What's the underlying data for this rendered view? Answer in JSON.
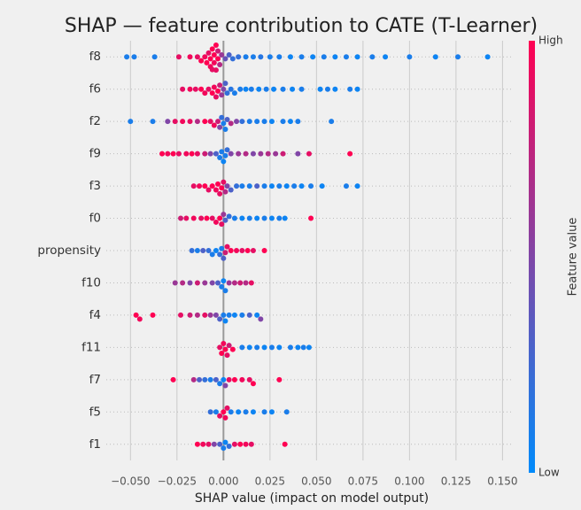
{
  "chart_data": {
    "type": "beeswarm",
    "title": "SHAP — feature contribution to CATE (T-Learner)",
    "x_label": "SHAP value (impact on model output)",
    "xlim": [
      -0.063,
      0.156
    ],
    "xticks": [
      {
        "value": -0.05,
        "label": "−0.050"
      },
      {
        "value": -0.025,
        "label": "−0.025"
      },
      {
        "value": 0,
        "label": "0.000"
      },
      {
        "value": 0.025,
        "label": "0.025"
      },
      {
        "value": 0.05,
        "label": "0.050"
      },
      {
        "value": 0.075,
        "label": "0.075"
      },
      {
        "value": 0.1,
        "label": "0.100"
      },
      {
        "value": 0.125,
        "label": "0.125"
      },
      {
        "value": 0.15,
        "label": "0.150"
      }
    ],
    "grid": true,
    "colorbar": {
      "title": "Feature value",
      "high": "High",
      "low": "Low",
      "low_color": "#008bfb",
      "high_color": "#ff0052"
    },
    "series": [
      {
        "name": "f8",
        "values": [
          -0.052,
          -0.048,
          -0.037,
          -0.024,
          -0.018,
          -0.014,
          -0.012,
          -0.01,
          -0.009,
          -0.008,
          -0.007,
          -0.007,
          -0.006,
          -0.006,
          -0.005,
          -0.005,
          -0.004,
          -0.004,
          -0.003,
          -0.003,
          -0.002,
          -0.001,
          0.001,
          0.003,
          0.005,
          0.008,
          0.012,
          0.016,
          0.02,
          0.025,
          0.03,
          0.036,
          0.042,
          0.048,
          0.054,
          0.06,
          0.066,
          0.072,
          0.08,
          0.087,
          0.1,
          0.114,
          0.126,
          0.142
        ],
        "feature_values": [
          0.1,
          0.1,
          0.1,
          0.9,
          0.95,
          0.9,
          1,
          0.95,
          1,
          0.9,
          1,
          0.95,
          1,
          0.9,
          1,
          0.95,
          1,
          0.9,
          1,
          0.8,
          0.7,
          0.6,
          0.4,
          0.3,
          0.2,
          0.2,
          0.1,
          0.1,
          0.15,
          0.1,
          0.1,
          0.05,
          0.1,
          0.05,
          0.1,
          0.05,
          0.1,
          0.05,
          0.1,
          0.05,
          0.1,
          0.05,
          0.1,
          0.05
        ]
      },
      {
        "name": "f6",
        "values": [
          -0.022,
          -0.018,
          -0.015,
          -0.012,
          -0.01,
          -0.008,
          -0.006,
          -0.005,
          -0.004,
          -0.003,
          -0.002,
          -0.001,
          0.0,
          0.001,
          0.002,
          0.004,
          0.006,
          0.009,
          0.012,
          0.015,
          0.019,
          0.023,
          0.027,
          0.032,
          0.037,
          0.042,
          0.052,
          0.056,
          0.06,
          0.068,
          0.072
        ],
        "feature_values": [
          0.9,
          0.95,
          0.9,
          1,
          0.95,
          0.9,
          1,
          0.95,
          0.9,
          1,
          0.8,
          0.6,
          0.5,
          0.3,
          0.2,
          0.15,
          0.1,
          0.1,
          0.05,
          0.1,
          0.05,
          0.1,
          0.05,
          0.1,
          0.05,
          0.1,
          0.05,
          0.1,
          0.05,
          0.1,
          0.05
        ]
      },
      {
        "name": "f2",
        "values": [
          -0.05,
          -0.038,
          -0.03,
          -0.026,
          -0.022,
          -0.018,
          -0.014,
          -0.01,
          -0.007,
          -0.005,
          -0.003,
          -0.002,
          -0.001,
          0.0,
          0.001,
          0.002,
          0.004,
          0.007,
          0.01,
          0.014,
          0.018,
          0.022,
          0.026,
          0.032,
          0.036,
          0.04,
          0.058
        ],
        "feature_values": [
          0.1,
          0.1,
          0.5,
          0.9,
          0.95,
          0.9,
          0.7,
          1,
          0.9,
          0.95,
          0.8,
          0.5,
          0.2,
          0.1,
          0.1,
          0.3,
          0.7,
          0.5,
          0.2,
          0.1,
          0.1,
          0.1,
          0.05,
          0.1,
          0.05,
          0.1,
          0.1
        ]
      },
      {
        "name": "f9",
        "values": [
          -0.033,
          -0.03,
          -0.027,
          -0.024,
          -0.02,
          -0.017,
          -0.014,
          -0.01,
          -0.007,
          -0.004,
          -0.002,
          -0.001,
          0.0,
          0.001,
          0.002,
          0.004,
          0.008,
          0.012,
          0.016,
          0.02,
          0.024,
          0.028,
          0.032,
          0.04,
          0.046,
          0.068
        ],
        "feature_values": [
          1,
          0.95,
          1,
          0.9,
          0.95,
          1,
          0.9,
          0.8,
          0.5,
          0.3,
          0.1,
          0.1,
          0.05,
          0.1,
          0.2,
          0.5,
          0.6,
          0.7,
          0.5,
          0.6,
          0.7,
          0.6,
          0.8,
          0.5,
          0.9,
          1
        ]
      },
      {
        "name": "f3",
        "values": [
          -0.016,
          -0.013,
          -0.01,
          -0.008,
          -0.006,
          -0.004,
          -0.003,
          -0.002,
          -0.001,
          0.0,
          0.001,
          0.002,
          0.004,
          0.007,
          0.01,
          0.014,
          0.018,
          0.022,
          0.026,
          0.03,
          0.034,
          0.038,
          0.042,
          0.047,
          0.053,
          0.066,
          0.072
        ],
        "feature_values": [
          0.9,
          0.95,
          1,
          0.9,
          1,
          0.95,
          1,
          0.9,
          1,
          0.9,
          0.7,
          0.5,
          0.3,
          0.2,
          0.1,
          0.1,
          0.3,
          0.1,
          0.05,
          0.1,
          0.05,
          0.1,
          0.05,
          0.1,
          0.05,
          0.1,
          0.05
        ]
      },
      {
        "name": "f0",
        "values": [
          -0.023,
          -0.02,
          -0.016,
          -0.012,
          -0.009,
          -0.006,
          -0.004,
          -0.002,
          -0.001,
          0.0,
          0.001,
          0.003,
          0.006,
          0.01,
          0.014,
          0.018,
          0.022,
          0.026,
          0.03,
          0.033,
          0.047
        ],
        "feature_values": [
          0.8,
          0.9,
          0.95,
          0.9,
          1,
          0.9,
          0.95,
          1,
          0.9,
          0.6,
          0.3,
          0.2,
          0.1,
          0.05,
          0.1,
          0.05,
          0.1,
          0.05,
          0.1,
          0.05,
          1
        ]
      },
      {
        "name": "propensity",
        "values": [
          -0.017,
          -0.014,
          -0.011,
          -0.008,
          -0.006,
          -0.004,
          -0.002,
          -0.001,
          0.0,
          0.001,
          0.002,
          0.004,
          0.007,
          0.01,
          0.013,
          0.016,
          0.022
        ],
        "feature_values": [
          0.2,
          0.1,
          0.3,
          0.2,
          0.1,
          0.05,
          0.2,
          0.1,
          0.3,
          0.8,
          0.9,
          1,
          0.95,
          0.9,
          1,
          0.9,
          1
        ]
      },
      {
        "name": "f10",
        "values": [
          -0.026,
          -0.022,
          -0.018,
          -0.014,
          -0.01,
          -0.006,
          -0.003,
          -0.001,
          0.0,
          0.001,
          0.003,
          0.006,
          0.009,
          0.012,
          0.015
        ],
        "feature_values": [
          0.6,
          0.7,
          0.5,
          0.8,
          0.6,
          0.5,
          0.3,
          0.1,
          0.05,
          0.1,
          0.6,
          0.7,
          0.8,
          0.7,
          0.9
        ]
      },
      {
        "name": "f4",
        "values": [
          -0.047,
          -0.045,
          -0.038,
          -0.023,
          -0.018,
          -0.014,
          -0.01,
          -0.007,
          -0.004,
          -0.002,
          0.0,
          0.001,
          0.003,
          0.006,
          0.01,
          0.014,
          0.018,
          0.02
        ],
        "feature_values": [
          1,
          0.95,
          1,
          0.9,
          0.8,
          0.7,
          0.9,
          0.6,
          0.5,
          0.3,
          0.1,
          0.05,
          0.1,
          0.05,
          0.1,
          0.3,
          0.05,
          0.5
        ]
      },
      {
        "name": "f11",
        "values": [
          -0.002,
          -0.001,
          0.0,
          0.001,
          0.002,
          0.003,
          0.005,
          0.01,
          0.014,
          0.018,
          0.022,
          0.026,
          0.03,
          0.036,
          0.04,
          0.043,
          0.046
        ],
        "feature_values": [
          0.9,
          1,
          0.95,
          1,
          0.9,
          0.8,
          1,
          0.1,
          0.05,
          0.1,
          0.05,
          0.1,
          0.05,
          0.1,
          0.05,
          0.1,
          0.05
        ]
      },
      {
        "name": "f7",
        "values": [
          -0.027,
          -0.016,
          -0.013,
          -0.01,
          -0.007,
          -0.004,
          -0.002,
          0.0,
          0.001,
          0.003,
          0.006,
          0.01,
          0.014,
          0.016,
          0.03
        ],
        "feature_values": [
          1,
          0.7,
          0.3,
          0.2,
          0.1,
          0.3,
          0.1,
          0.05,
          0.5,
          0.9,
          1,
          0.95,
          0.9,
          1,
          1
        ]
      },
      {
        "name": "f5",
        "values": [
          -0.007,
          -0.004,
          -0.002,
          0.0,
          0.001,
          0.002,
          0.004,
          0.008,
          0.012,
          0.016,
          0.022,
          0.026,
          0.034
        ],
        "feature_values": [
          0.2,
          0.1,
          0.9,
          1,
          0.95,
          0.9,
          0.1,
          0.05,
          0.1,
          0.05,
          0.1,
          0.05,
          0.1
        ]
      },
      {
        "name": "f1",
        "values": [
          -0.014,
          -0.011,
          -0.008,
          -0.005,
          -0.002,
          0.0,
          0.001,
          0.003,
          0.006,
          0.009,
          0.012,
          0.015,
          0.033
        ],
        "feature_values": [
          1,
          0.95,
          0.9,
          0.5,
          0.3,
          0.1,
          0.05,
          0.2,
          0.9,
          1,
          0.95,
          0.9,
          1
        ]
      }
    ]
  }
}
